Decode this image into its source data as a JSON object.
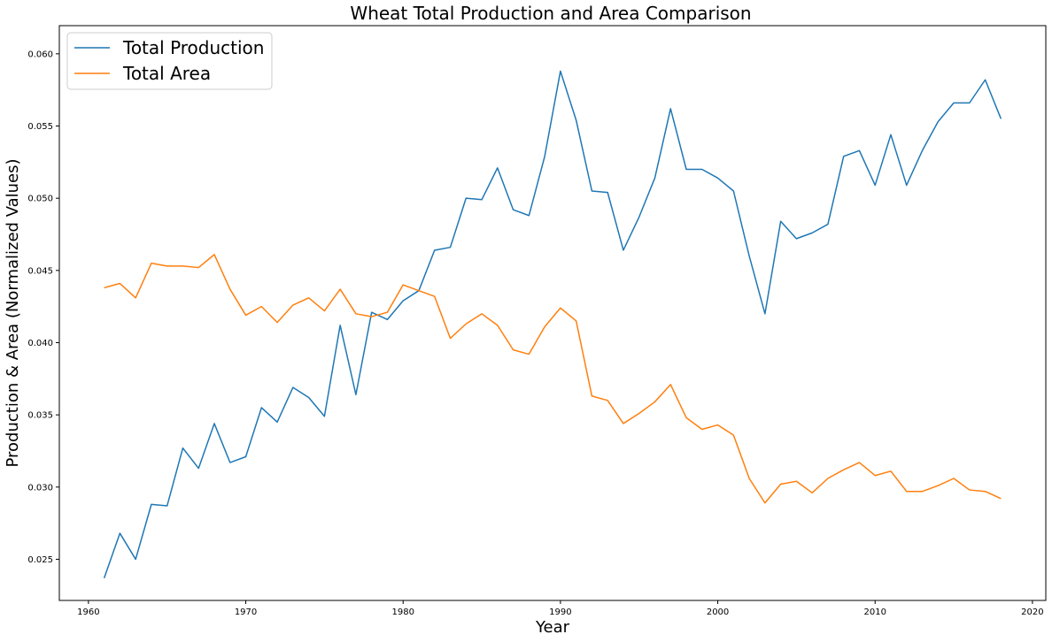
{
  "chart_data": {
    "type": "line",
    "title": "Wheat Total Production and Area Comparison",
    "xlabel": "Year",
    "ylabel": "Production & Area (Normalized Values)",
    "xlim": [
      1958.15,
      2020.85
    ],
    "ylim": [
      0.02215,
      0.06195
    ],
    "xticks": [
      1960,
      1970,
      1980,
      1990,
      2000,
      2010,
      2020
    ],
    "xtick_labels": [
      "1960",
      "1970",
      "1980",
      "1990",
      "2000",
      "2010",
      "2020"
    ],
    "yticks": [
      0.025,
      0.03,
      0.035,
      0.04,
      0.045,
      0.05,
      0.055,
      0.06
    ],
    "ytick_labels": [
      "0.025",
      "0.030",
      "0.035",
      "0.040",
      "0.045",
      "0.050",
      "0.055",
      "0.060"
    ],
    "grid": false,
    "legend_position": "top-left",
    "x": [
      1961,
      1962,
      1963,
      1964,
      1965,
      1966,
      1967,
      1968,
      1969,
      1970,
      1971,
      1972,
      1973,
      1974,
      1975,
      1976,
      1977,
      1978,
      1979,
      1980,
      1981,
      1982,
      1983,
      1984,
      1985,
      1986,
      1987,
      1988,
      1989,
      1990,
      1991,
      1992,
      1993,
      1994,
      1995,
      1996,
      1997,
      1998,
      1999,
      2000,
      2001,
      2002,
      2003,
      2004,
      2005,
      2006,
      2007,
      2008,
      2009,
      2010,
      2011,
      2012,
      2013,
      2014,
      2015,
      2016,
      2017,
      2018
    ],
    "series": [
      {
        "name": "Total Production",
        "color": "#1f77b4",
        "values": [
          0.0237,
          0.0268,
          0.025,
          0.0288,
          0.0287,
          0.0327,
          0.0313,
          0.0344,
          0.0317,
          0.0321,
          0.0355,
          0.0345,
          0.0369,
          0.0362,
          0.0349,
          0.0412,
          0.0364,
          0.0421,
          0.0416,
          0.0429,
          0.0436,
          0.0464,
          0.0466,
          0.05,
          0.0499,
          0.0521,
          0.0492,
          0.0488,
          0.0529,
          0.0588,
          0.0554,
          0.0505,
          0.0504,
          0.0464,
          0.0487,
          0.0514,
          0.0562,
          0.052,
          0.052,
          0.0514,
          0.0505,
          0.046,
          0.042,
          0.0484,
          0.0472,
          0.0476,
          0.0482,
          0.0529,
          0.0533,
          0.0509,
          0.0544,
          0.0509,
          0.0533,
          0.0553,
          0.0566,
          0.0566,
          0.0582,
          0.0555
        ]
      },
      {
        "name": "Total Area",
        "color": "#ff7f0e",
        "values": [
          0.0438,
          0.0441,
          0.0431,
          0.0455,
          0.0453,
          0.0453,
          0.0452,
          0.0461,
          0.0437,
          0.0419,
          0.0425,
          0.0414,
          0.0426,
          0.0431,
          0.0422,
          0.0437,
          0.042,
          0.0418,
          0.0421,
          0.044,
          0.0436,
          0.0432,
          0.0403,
          0.0413,
          0.042,
          0.0412,
          0.0395,
          0.0392,
          0.0411,
          0.0424,
          0.0415,
          0.0363,
          0.036,
          0.0344,
          0.0351,
          0.0359,
          0.0371,
          0.0348,
          0.034,
          0.0343,
          0.0336,
          0.0306,
          0.0289,
          0.0302,
          0.0304,
          0.0296,
          0.0306,
          0.0312,
          0.0317,
          0.0308,
          0.0311,
          0.0297,
          0.0297,
          0.0301,
          0.0306,
          0.0298,
          0.0297,
          0.0292
        ]
      }
    ]
  }
}
